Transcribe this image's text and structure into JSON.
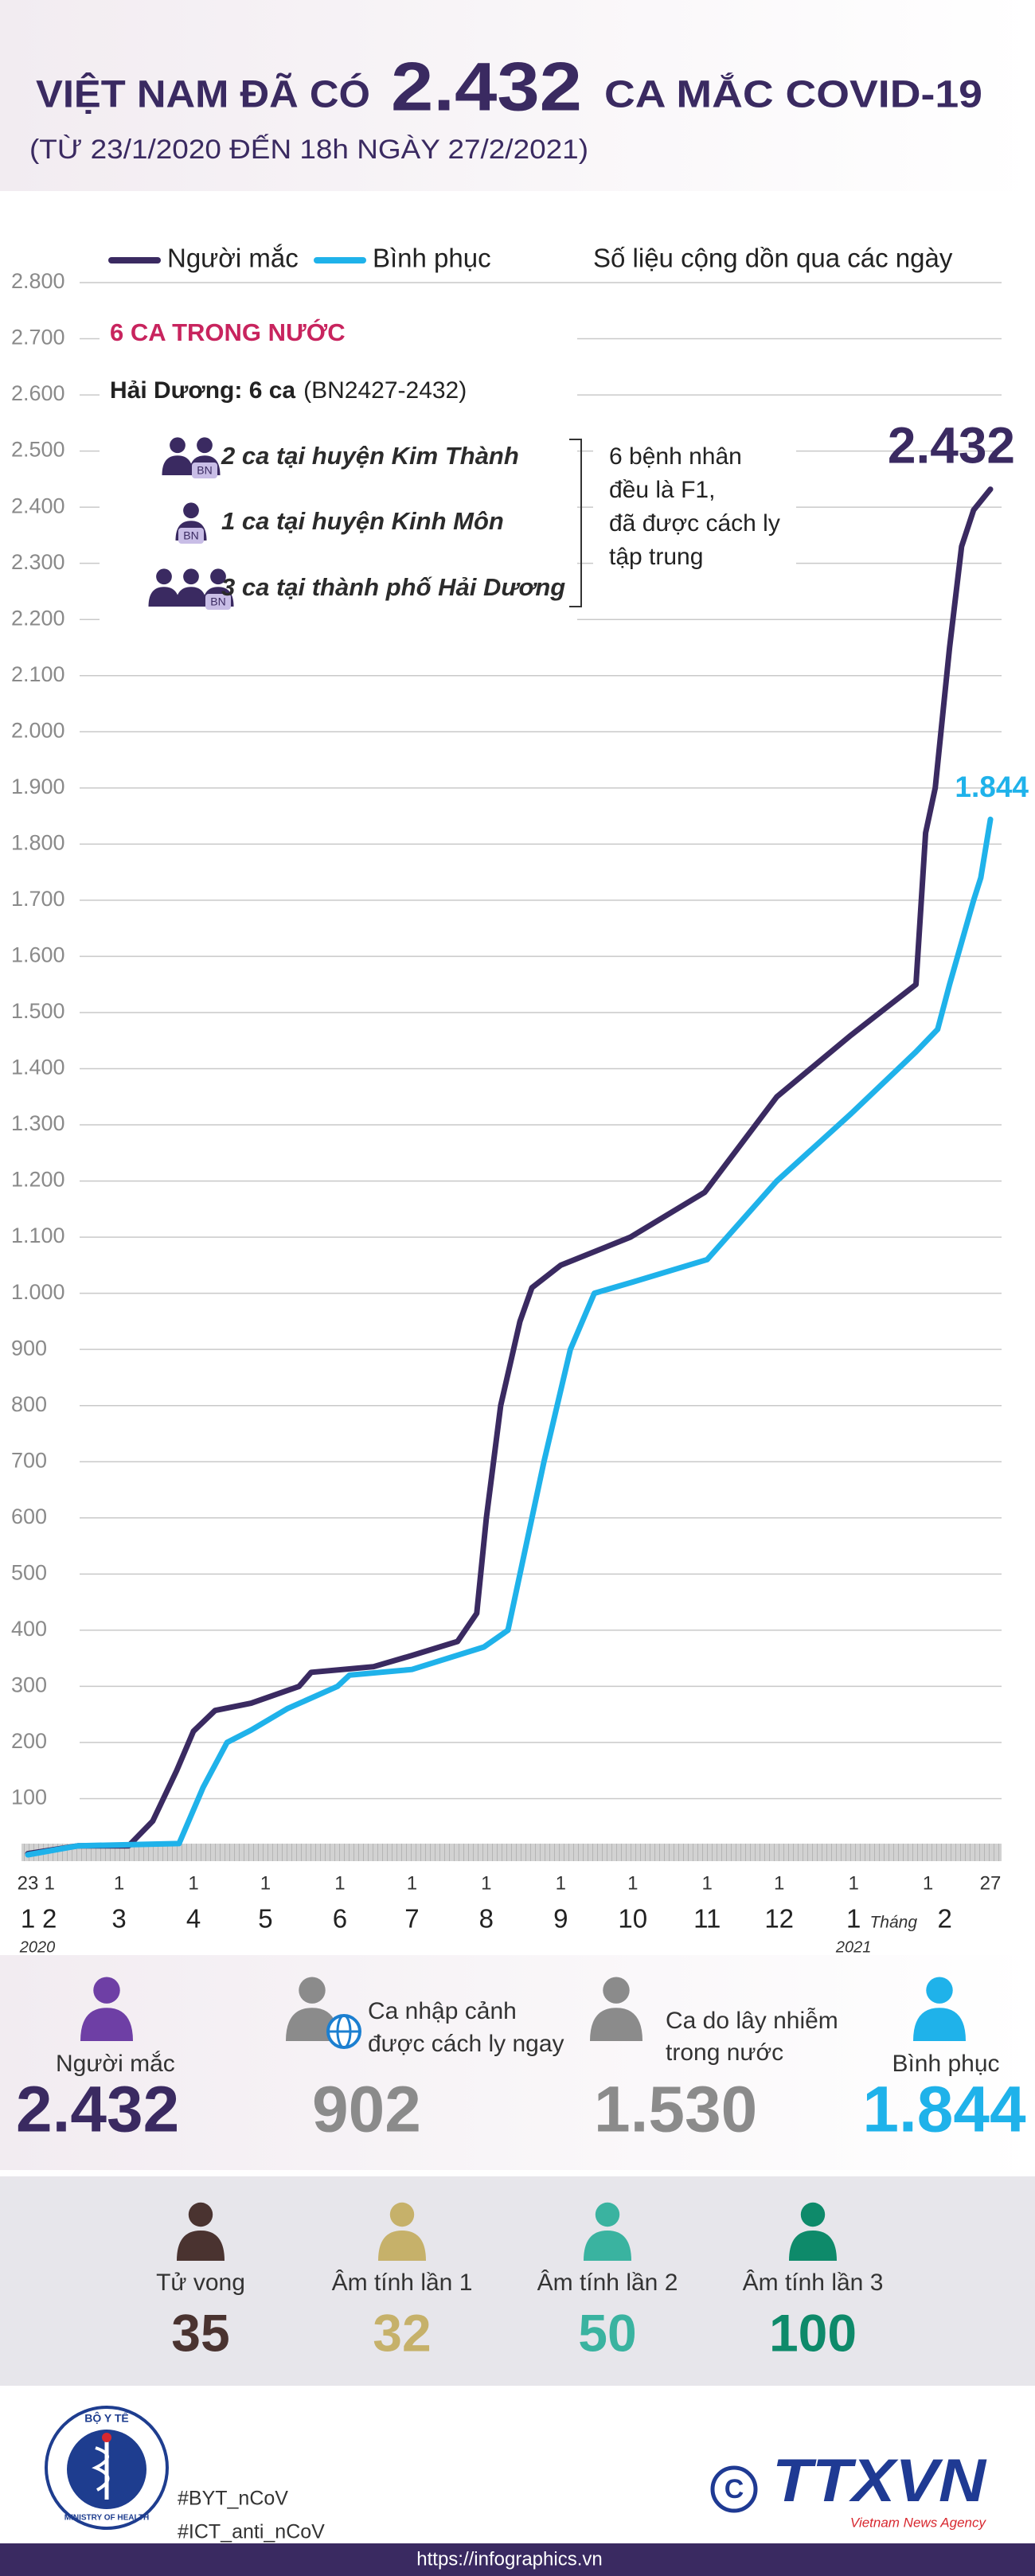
{
  "header": {
    "title_a": "VIỆT NAM ĐÃ CÓ",
    "title_b": "2.432",
    "title_c": "CA MẮC COVID-19",
    "subtitle": "(TỪ 23/1/2020 ĐẾN 18h NGÀY 27/2/2021)"
  },
  "chart_data": {
    "type": "line",
    "note": "Số liệu cộng dồn qua các ngày",
    "xlim": [
      "2020-01-23",
      "2021-02-27"
    ],
    "ylim": [
      0,
      2800
    ],
    "yticks": [
      100,
      200,
      300,
      400,
      500,
      600,
      700,
      800,
      900,
      {
        "value": 1000,
        "label": "1.000"
      },
      {
        "value": 1100,
        "label": "1.100"
      },
      {
        "value": 1200,
        "label": "1.200"
      },
      {
        "value": 1300,
        "label": "1.300"
      },
      {
        "value": 1400,
        "label": "1.400"
      },
      {
        "value": 1500,
        "label": "1.500"
      },
      {
        "value": 1600,
        "label": "1.600"
      },
      {
        "value": 1700,
        "label": "1.700"
      },
      {
        "value": 1800,
        "label": "1.800"
      },
      {
        "value": 1900,
        "label": "1.900"
      },
      {
        "value": 2000,
        "label": "2.000"
      },
      {
        "value": 2100,
        "label": "2.100"
      },
      {
        "value": 2200,
        "label": "2.200"
      },
      {
        "value": 2300,
        "label": "2.300"
      },
      {
        "value": 2400,
        "label": "2.400"
      },
      {
        "value": 2500,
        "label": "2.500"
      },
      {
        "value": 2600,
        "label": "2.600"
      },
      {
        "value": 2700,
        "label": "2.700"
      },
      {
        "value": 2800,
        "label": "2.800"
      }
    ],
    "grid": true,
    "xticks": [
      {
        "value": "2020-01-23",
        "label": "23"
      },
      {
        "value": "2020-02-01",
        "label": "1"
      },
      {
        "value": "2020-03-01",
        "label": "1"
      },
      {
        "value": "2020-04-01",
        "label": "1"
      },
      {
        "value": "2020-05-01",
        "label": "1"
      },
      {
        "value": "2020-06-01",
        "label": "1"
      },
      {
        "value": "2020-07-01",
        "label": "1"
      },
      {
        "value": "2020-08-01",
        "label": "1"
      },
      {
        "value": "2020-09-01",
        "label": "1"
      },
      {
        "value": "2020-10-01",
        "label": "1"
      },
      {
        "value": "2020-11-01",
        "label": "1"
      },
      {
        "value": "2020-12-01",
        "label": "1"
      },
      {
        "value": "2021-01-01",
        "label": "1"
      },
      {
        "value": "2021-02-01",
        "label": "1"
      },
      {
        "value": "2021-02-27",
        "label": "27"
      }
    ],
    "month_labels": [
      {
        "value": "2020-01-23",
        "label": "1"
      },
      {
        "value": "2020-02-01",
        "label": "2"
      },
      {
        "value": "2020-03-01",
        "label": "3"
      },
      {
        "value": "2020-04-01",
        "label": "4"
      },
      {
        "value": "2020-05-01",
        "label": "5"
      },
      {
        "value": "2020-06-01",
        "label": "6"
      },
      {
        "value": "2020-07-01",
        "label": "7"
      },
      {
        "value": "2020-08-01",
        "label": "8"
      },
      {
        "value": "2020-09-01",
        "label": "9"
      },
      {
        "value": "2020-10-01",
        "label": "10"
      },
      {
        "value": "2020-11-01",
        "label": "11"
      },
      {
        "value": "2020-12-01",
        "label": "12"
      },
      {
        "value": "2021-01-01",
        "label": "1"
      },
      {
        "value": "2021-02-08",
        "label": "2"
      }
    ],
    "month_word": "Tháng",
    "year_labels": [
      {
        "value": "2020-01-23",
        "label": "2020"
      },
      {
        "value": "2021-01-01",
        "label": "2021"
      }
    ],
    "series": [
      {
        "name": "Người mắc",
        "color": "#3a2a61",
        "x": [
          "2020-01-23",
          "2020-02-13",
          "2020-03-05",
          "2020-03-15",
          "2020-03-25",
          "2020-04-01",
          "2020-04-10",
          "2020-04-25",
          "2020-05-15",
          "2020-05-20",
          "2020-06-15",
          "2020-07-01",
          "2020-07-20",
          "2020-07-28",
          "2020-08-01",
          "2020-08-07",
          "2020-08-15",
          "2020-08-20",
          "2020-09-01",
          "2020-09-30",
          "2020-10-31",
          "2020-11-30",
          "2020-12-31",
          "2021-01-27",
          "2021-01-31",
          "2021-02-04",
          "2021-02-10",
          "2021-02-15",
          "2021-02-20",
          "2021-02-27"
        ],
        "values": [
          2,
          16,
          16,
          60,
          150,
          220,
          257,
          270,
          300,
          325,
          335,
          355,
          380,
          430,
          600,
          800,
          950,
          1010,
          1050,
          1100,
          1180,
          1350,
          1460,
          1550,
          1820,
          1900,
          2150,
          2330,
          2395,
          2432
        ],
        "value_labels": [
          null,
          null,
          null,
          null,
          null,
          null,
          null,
          null,
          null,
          null,
          null,
          null,
          null,
          null,
          null,
          null,
          null,
          null,
          null,
          null,
          null,
          null,
          null,
          null,
          null,
          null,
          null,
          null,
          null,
          "2.432"
        ]
      },
      {
        "name": "Bình phục",
        "color": "#1fb2ea",
        "x": [
          "2020-01-23",
          "2020-02-13",
          "2020-03-26",
          "2020-04-05",
          "2020-04-15",
          "2020-04-25",
          "2020-05-10",
          "2020-05-31",
          "2020-06-05",
          "2020-07-01",
          "2020-07-31",
          "2020-08-10",
          "2020-08-15",
          "2020-08-25",
          "2020-09-05",
          "2020-09-15",
          "2020-10-01",
          "2020-11-01",
          "2020-11-30",
          "2020-12-31",
          "2021-01-27",
          "2021-02-05",
          "2021-02-10",
          "2021-02-20",
          "2021-02-23",
          "2021-02-27"
        ],
        "values": [
          0,
          16,
          20,
          120,
          200,
          222,
          260,
          300,
          320,
          330,
          370,
          400,
          500,
          700,
          900,
          1000,
          1020,
          1060,
          1200,
          1320,
          1430,
          1470,
          1550,
          1700,
          1740,
          1844
        ],
        "value_labels": [
          null,
          null,
          null,
          null,
          null,
          null,
          null,
          null,
          null,
          null,
          null,
          null,
          null,
          null,
          null,
          null,
          null,
          null,
          null,
          null,
          null,
          null,
          null,
          null,
          null,
          "1.844"
        ]
      }
    ]
  },
  "annotation": {
    "heading": "6 CA TRONG NƯỚC",
    "place_bold": "Hải Dương: 6 ca",
    "place_rest": "(BN2427-2432)",
    "badge": "BN",
    "rows": [
      "2 ca tại huyện Kim Thành",
      "1 ca tại huyện Kinh Môn",
      "3 ca tại thành phố Hải Dương"
    ],
    "note": [
      "6 bệnh nhân",
      "đều là F1,",
      "đã được cách ly",
      "tập trung"
    ]
  },
  "stats": [
    {
      "label": [
        "Người mắc"
      ],
      "value": "2.432"
    },
    {
      "label": [
        "Ca nhập cảnh",
        "được cách ly ngay"
      ],
      "value": "902"
    },
    {
      "label": [
        "Ca do lây nhiễm",
        "trong nước"
      ],
      "value": "1.530"
    },
    {
      "label": [
        "Bình phục"
      ],
      "value": "1.844"
    }
  ],
  "outcomes": [
    {
      "label": "Tử vong",
      "value": 35
    },
    {
      "label": "Âm tính lần 1",
      "value": 32
    },
    {
      "label": "Âm tính lần 2",
      "value": 50
    },
    {
      "label": "Âm tính lần 3",
      "value": 100
    }
  ],
  "footer": {
    "logo_top": "BỘ Y TẾ",
    "logo_bottom": "MINISTRY OF HEALTH",
    "hashtags": [
      "#BYT_nCoV",
      "#ICT_anti_nCoV"
    ],
    "copyright": "C",
    "agency": "TTXVN",
    "agency_en": "Vietnam News Agency",
    "url": "https://infographics.vn"
  }
}
